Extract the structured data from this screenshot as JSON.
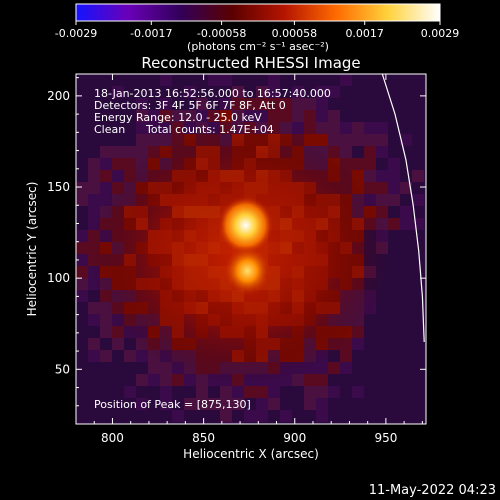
{
  "chart_data": {
    "type": "heatmap",
    "title": "Reconstructed RHESSI Image",
    "xlabel": "Heliocentric X (arcsec)",
    "ylabel": "Heliocentric Y (arcsec)",
    "xlim": [
      780,
      972
    ],
    "ylim": [
      20,
      212
    ],
    "x_ticks": [
      800,
      850,
      900,
      950
    ],
    "y_ticks": [
      50,
      100,
      150,
      200
    ],
    "colorbar": {
      "ticks": [
        "-0.0029",
        "-0.0017",
        "-0.00058",
        "0.00058",
        "0.0017",
        "0.0029"
      ],
      "tick_values": [
        -0.0029,
        -0.0017,
        -0.00058,
        0.00058,
        0.0017,
        0.0029
      ],
      "range": [
        -0.0029,
        0.0029
      ],
      "unit_label": "(photons cm⁻² s⁻¹ asec⁻²)",
      "colormap": [
        "#1414ff",
        "#6a00b8",
        "#32005a",
        "#5a0000",
        "#b41400",
        "#ff6a00",
        "#ffd23c",
        "#ffffff"
      ]
    },
    "annotations": [
      "18-Jan-2013 16:52:56.000 to 16:57:40.000",
      "Detectors: 3F 4F 5F 6F 7F 8F, Att 0",
      "Energy Range: 12.0 - 25.0 keV",
      "Clean",
      "Total counts: 1.47E+04"
    ],
    "peak_label": "Position of Peak = [875,130]",
    "peak": [
      875,
      130
    ],
    "sources": [
      {
        "x": 873,
        "y": 129,
        "value": 0.0029
      },
      {
        "x": 874,
        "y": 104,
        "value": 0.0022
      }
    ],
    "limb_curve": [
      [
        948,
        212
      ],
      [
        955,
        190
      ],
      [
        961,
        165
      ],
      [
        965,
        140
      ],
      [
        968,
        115
      ],
      [
        970,
        90
      ],
      [
        971,
        65
      ]
    ],
    "grid": false
  },
  "timestamp": "11-May-2022 04:23"
}
